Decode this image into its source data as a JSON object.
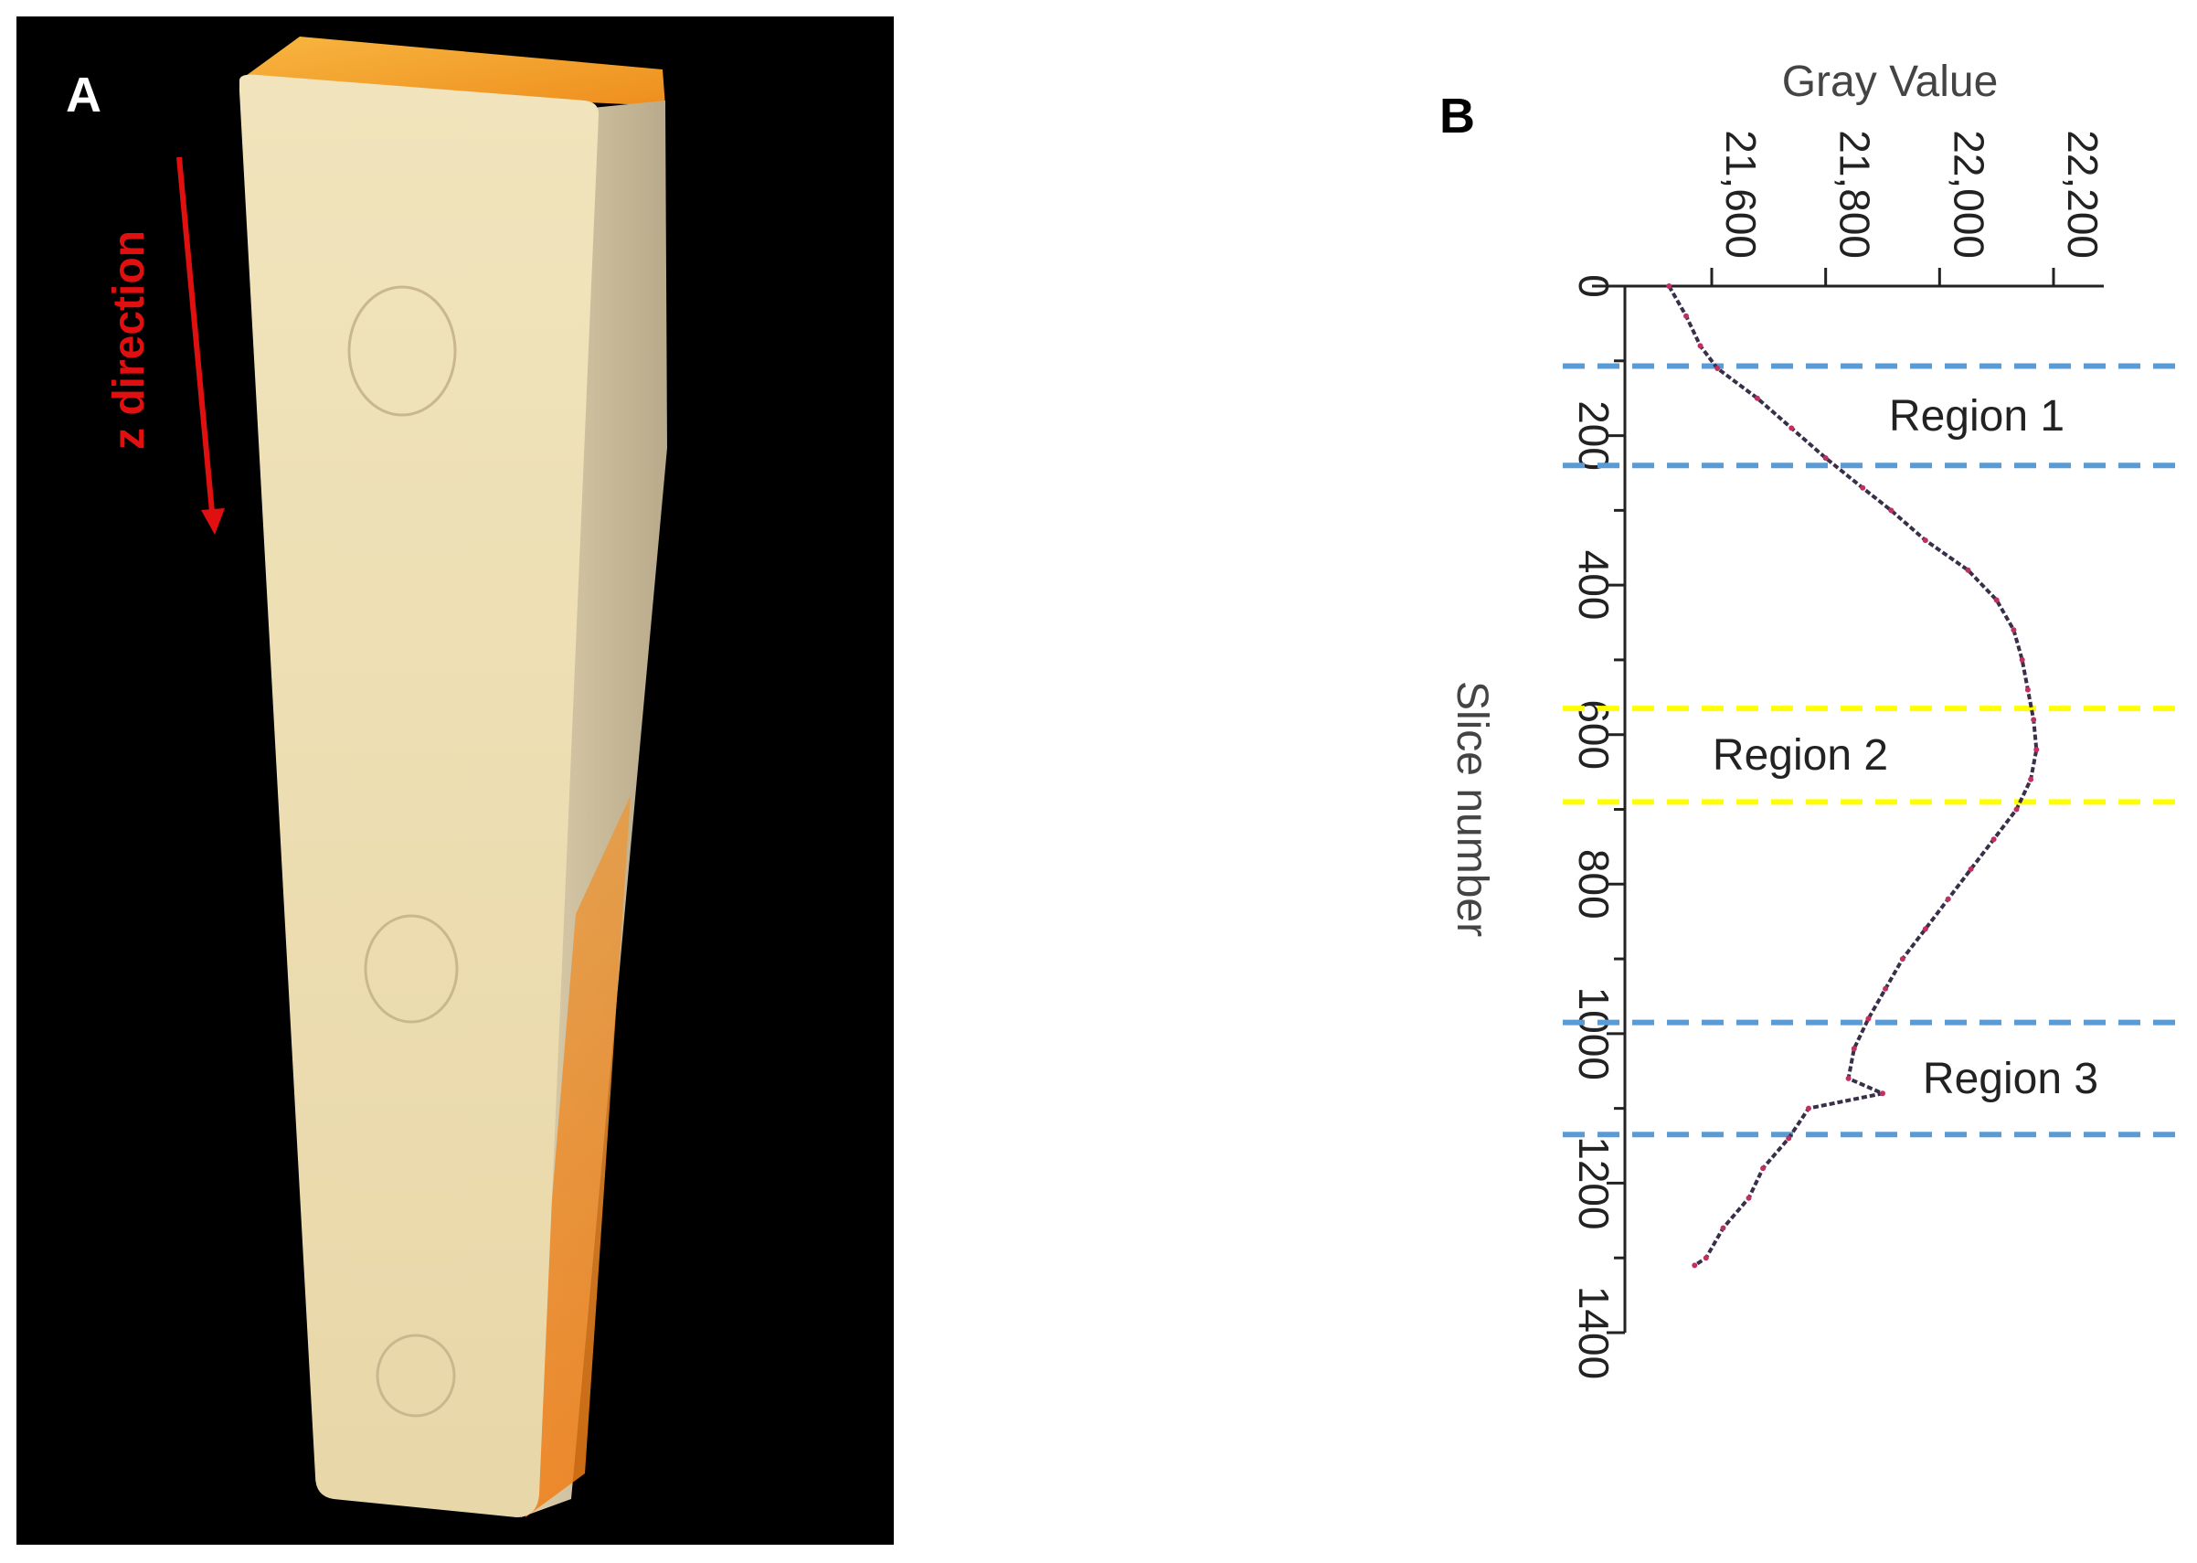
{
  "panel_a": {
    "label": "A",
    "arrow_label": "z direction",
    "colors": {
      "background": "#000000",
      "block_face": "#efe0b4",
      "block_side": "#cfc1a0",
      "block_top": "#f3a52e",
      "arrow": "#e01010"
    }
  },
  "panel_b": {
    "label": "B"
  },
  "chart_data": {
    "type": "line",
    "orientation": "rotated-90",
    "title": "",
    "xlabel": "Gray Value",
    "ylabel": "Slice number",
    "xlim": [
      21470,
      22290
    ],
    "ylim": [
      0,
      1400
    ],
    "x_ticks": [
      21600,
      21800,
      22000,
      22200
    ],
    "x_tick_labels": [
      "21,600",
      "21,800",
      "22,000",
      "22,200"
    ],
    "y_ticks": [
      0,
      200,
      400,
      600,
      800,
      1000,
      1200,
      1400
    ],
    "y_tick_labels": [
      "0",
      "200",
      "400",
      "600",
      "800",
      "1000",
      "1200",
      "1400"
    ],
    "grid": false,
    "line_color": "#3a2f4a",
    "series": [
      {
        "slice": [
          0,
          40,
          80,
          110,
          150,
          190,
          230,
          270,
          300,
          340,
          380,
          420,
          460,
          500,
          540,
          580,
          620,
          660,
          700,
          740,
          780,
          820,
          860,
          900,
          940,
          980,
          1020,
          1060,
          1080,
          1100,
          1140,
          1180,
          1220,
          1260,
          1300,
          1310
        ],
        "gray_value": [
          21525,
          21555,
          21580,
          21610,
          21680,
          21740,
          21800,
          21865,
          21915,
          21975,
          22050,
          22100,
          22130,
          22145,
          22155,
          22165,
          22170,
          22160,
          22135,
          22095,
          22055,
          22015,
          21975,
          21935,
          21905,
          21875,
          21850,
          21840,
          21900,
          21770,
          21735,
          21690,
          21665,
          21620,
          21590,
          21570
        ]
      }
    ],
    "regions": [
      {
        "name": "Region 1",
        "start": 107,
        "end": 240,
        "color": "#5b9bd5"
      },
      {
        "name": "Region 2",
        "start": 565,
        "end": 690,
        "color": "#ffff00"
      },
      {
        "name": "Region 3",
        "start": 985,
        "end": 1135,
        "color": "#5b9bd5"
      }
    ]
  }
}
